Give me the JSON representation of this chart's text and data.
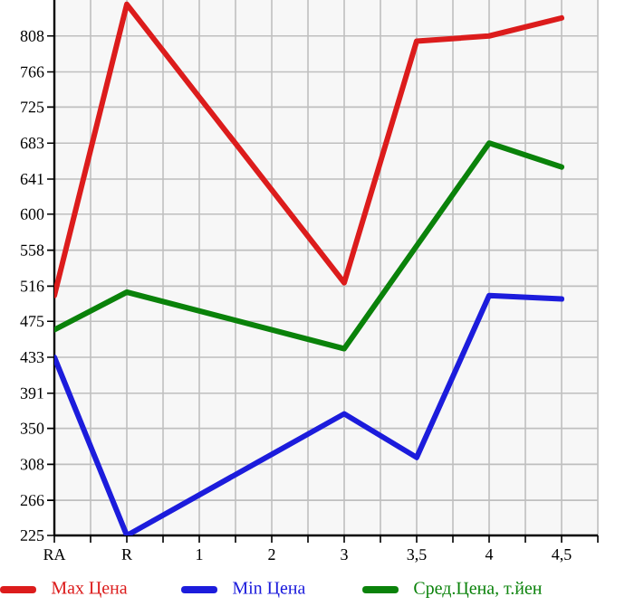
{
  "chart_data": {
    "type": "line",
    "categories": [
      "RA",
      "R",
      "1",
      "2",
      "3",
      "3,5",
      "4",
      "4,5"
    ],
    "series": [
      {
        "name": "Max Цена",
        "color": "#dc1c1c",
        "values": [
          505,
          845,
          null,
          null,
          520,
          802,
          808,
          829
        ]
      },
      {
        "name": "Min Цена",
        "color": "#1c1cdc",
        "values": [
          433,
          225,
          null,
          null,
          367,
          316,
          505,
          501
        ]
      },
      {
        "name": "Сред.Цена, т.йен",
        "color": "#0a820a",
        "values": [
          465,
          509,
          null,
          null,
          443,
          563,
          683,
          655
        ]
      }
    ],
    "ylim": [
      225,
      850
    ],
    "yticks": [
      225,
      266,
      308,
      350,
      391,
      433,
      475,
      516,
      558,
      600,
      641,
      683,
      725,
      766,
      808
    ],
    "grid": true,
    "legend": "bottom"
  }
}
